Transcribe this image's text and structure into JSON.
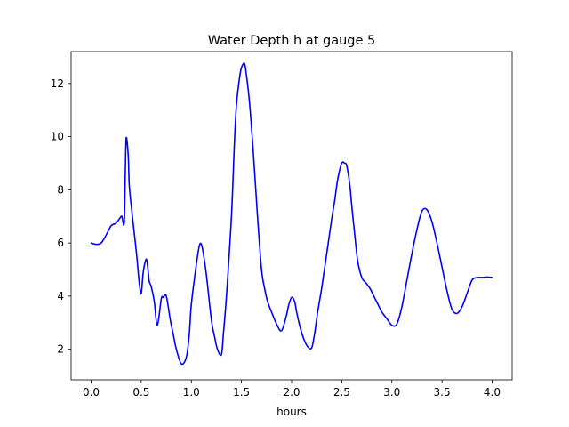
{
  "chart_data": {
    "type": "line",
    "title": "Water Depth h at gauge 5",
    "xlabel": "hours",
    "ylabel": "",
    "xlim": [
      -0.2,
      4.2
    ],
    "ylim": [
      0.85,
      13.2
    ],
    "xticks": [
      0.0,
      0.5,
      1.0,
      1.5,
      2.0,
      2.5,
      3.0,
      3.5,
      4.0
    ],
    "xtick_labels": [
      "0.0",
      "0.5",
      "1.0",
      "1.5",
      "2.0",
      "2.5",
      "3.0",
      "3.5",
      "4.0"
    ],
    "yticks": [
      2,
      4,
      6,
      8,
      10,
      12
    ],
    "ytick_labels": [
      "2",
      "4",
      "6",
      "8",
      "10",
      "12"
    ],
    "grid": false,
    "series": [
      {
        "color": "#0000ff",
        "x": [
          0.0,
          0.05,
          0.1,
          0.15,
          0.2,
          0.25,
          0.3,
          0.31,
          0.33,
          0.34,
          0.35,
          0.37,
          0.38,
          0.4,
          0.45,
          0.48,
          0.5,
          0.52,
          0.55,
          0.57,
          0.58,
          0.6,
          0.63,
          0.66,
          0.7,
          0.72,
          0.75,
          0.79,
          0.82,
          0.85,
          0.9,
          0.95,
          0.98,
          1.0,
          1.05,
          1.08,
          1.1,
          1.12,
          1.15,
          1.2,
          1.23,
          1.26,
          1.3,
          1.32,
          1.35,
          1.4,
          1.43,
          1.45,
          1.48,
          1.5,
          1.53,
          1.55,
          1.58,
          1.62,
          1.66,
          1.7,
          1.73,
          1.76,
          1.8,
          1.85,
          1.9,
          1.95,
          1.97,
          2.0,
          2.03,
          2.05,
          2.08,
          2.12,
          2.16,
          2.2,
          2.23,
          2.26,
          2.3,
          2.35,
          2.4,
          2.43,
          2.46,
          2.5,
          2.53,
          2.55,
          2.58,
          2.6,
          2.63,
          2.66,
          2.7,
          2.74,
          2.78,
          2.82,
          2.86,
          2.9,
          2.95,
          3.0,
          3.05,
          3.1,
          3.15,
          3.2,
          3.25,
          3.3,
          3.35,
          3.4,
          3.45,
          3.5,
          3.55,
          3.6,
          3.65,
          3.7,
          3.75,
          3.8,
          3.85,
          3.9,
          3.95,
          4.0
        ],
        "y": [
          6.0,
          5.95,
          6.0,
          6.3,
          6.65,
          6.75,
          7.0,
          6.95,
          6.75,
          8.5,
          9.95,
          9.3,
          8.2,
          7.4,
          5.7,
          4.5,
          4.1,
          4.9,
          5.4,
          4.9,
          4.55,
          4.35,
          3.8,
          2.9,
          3.9,
          3.95,
          4.0,
          3.1,
          2.55,
          2.0,
          1.45,
          1.7,
          2.6,
          3.7,
          5.2,
          5.9,
          5.95,
          5.6,
          4.8,
          3.1,
          2.5,
          2.0,
          1.8,
          2.6,
          4.0,
          7.0,
          9.8,
          11.2,
          12.2,
          12.6,
          12.75,
          12.3,
          11.3,
          9.3,
          7.0,
          5.0,
          4.3,
          3.8,
          3.4,
          2.95,
          2.7,
          3.3,
          3.65,
          3.95,
          3.8,
          3.4,
          2.9,
          2.4,
          2.1,
          2.05,
          2.6,
          3.4,
          4.3,
          5.6,
          6.9,
          7.6,
          8.4,
          9.0,
          9.0,
          8.9,
          8.2,
          7.4,
          6.3,
          5.3,
          4.7,
          4.5,
          4.3,
          4.0,
          3.7,
          3.4,
          3.15,
          2.9,
          2.95,
          3.6,
          4.6,
          5.6,
          6.5,
          7.2,
          7.25,
          6.8,
          6.0,
          5.1,
          4.2,
          3.5,
          3.35,
          3.6,
          4.1,
          4.6,
          4.7,
          4.7,
          4.72,
          4.7
        ]
      }
    ]
  }
}
